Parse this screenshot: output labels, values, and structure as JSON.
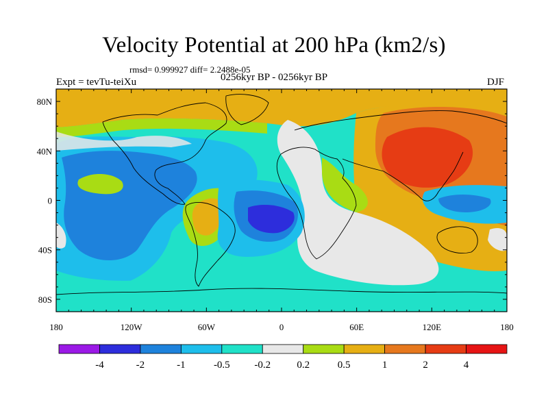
{
  "title": "Velocity Potential at 200 hPa (km2/s)",
  "stats": "rmsd= 0.999927  diff= 2.2488e-05",
  "left_label": "Expt = tevTu-teiXu",
  "center_label": "0256kyr BP - 0256kyr BP",
  "right_label": "DJF",
  "chart_data": {
    "type": "map",
    "projection": "cylindrical-equidistant",
    "lon_range": [
      -180,
      180
    ],
    "lat_range": [
      -90,
      90
    ],
    "lat_ticks": [
      "80N",
      "40N",
      "0",
      "40S",
      "80S"
    ],
    "lon_ticks": [
      "180",
      "120W",
      "60W",
      "0",
      "60E",
      "120E",
      "180"
    ],
    "colorbar": {
      "labels": [
        "-4",
        "-2",
        "-1",
        "-0.5",
        "-0.2",
        "0.2",
        "0.5",
        "1",
        "2",
        "4"
      ],
      "colors": [
        "#9b19e6",
        "#2d2ddc",
        "#1e82dc",
        "#1ebeeb",
        "#20e1c8",
        "#e8e8e8",
        "#a9dc14",
        "#e6af14",
        "#e6781e",
        "#e63c14",
        "#e61414"
      ]
    }
  }
}
